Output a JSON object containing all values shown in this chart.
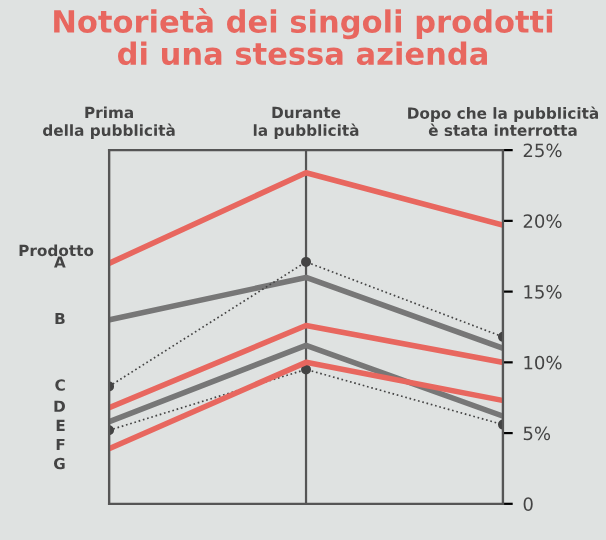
{
  "chart_data": {
    "type": "line",
    "title": "Notorietà dei singoli prodotti\ndi una stessa azienda",
    "categories": [
      "Prima\ndella pubblicità",
      "Durante\nla pubblicità",
      "Dopo che la pubblicità\nè stata interrotta"
    ],
    "series": [
      {
        "name": "A",
        "color": "#e8675f",
        "values": [
          17,
          23.4,
          19.7
        ],
        "line_style": "solid",
        "marker": "none"
      },
      {
        "name": "B",
        "color": "#777777",
        "values": [
          13,
          16,
          11
        ],
        "line_style": "solid",
        "marker": "none"
      },
      {
        "name": "C",
        "color": "#444444",
        "values": [
          8.3,
          17.1,
          11.8
        ],
        "line_style": "dotted",
        "marker": "circle"
      },
      {
        "name": "D",
        "color": "#e8675f",
        "values": [
          6.8,
          12.6,
          10
        ],
        "line_style": "solid",
        "marker": "none"
      },
      {
        "name": "E",
        "color": "#777777",
        "values": [
          5.8,
          11.2,
          6.2
        ],
        "line_style": "solid",
        "marker": "none"
      },
      {
        "name": "F",
        "color": "#444444",
        "values": [
          5.2,
          9.5,
          5.6
        ],
        "line_style": "dotted",
        "marker": "circle"
      },
      {
        "name": "G",
        "color": "#e8675f",
        "values": [
          3.9,
          10,
          7.3
        ],
        "line_style": "solid",
        "marker": "none"
      }
    ],
    "ylim": [
      0,
      25
    ],
    "yticks": [
      {
        "value": 0,
        "label": "0"
      },
      {
        "value": 5,
        "label": "5%"
      },
      {
        "value": 10,
        "label": "10%"
      },
      {
        "value": 15,
        "label": "15%"
      },
      {
        "value": 20,
        "label": "20%"
      },
      {
        "value": 25,
        "label": "25%"
      }
    ],
    "grid": "x",
    "legend": false,
    "annotations": [
      "Prodotto"
    ]
  }
}
